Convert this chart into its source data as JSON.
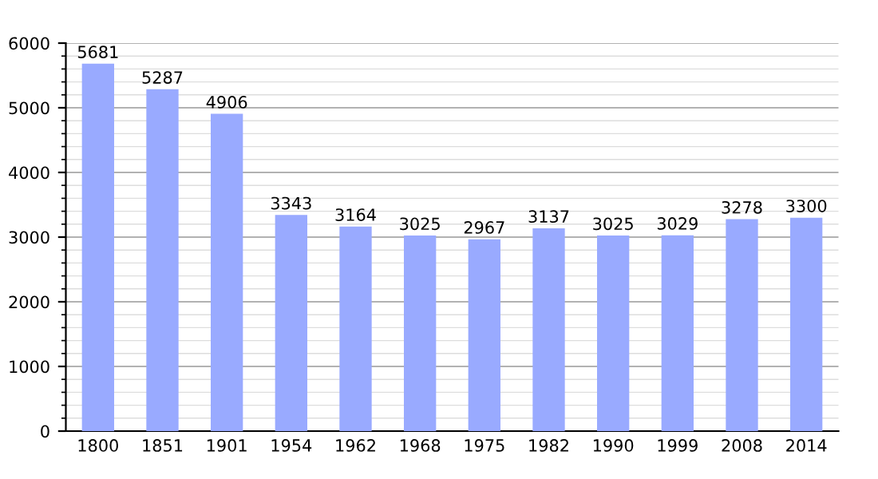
{
  "chart_data": {
    "type": "bar",
    "categories": [
      "1800",
      "1851",
      "1901",
      "1954",
      "1962",
      "1968",
      "1975",
      "1982",
      "1990",
      "1999",
      "2008",
      "2014"
    ],
    "values": [
      5681,
      5287,
      4906,
      3343,
      3164,
      3025,
      2967,
      3137,
      3025,
      3029,
      3278,
      3300
    ],
    "color": "#99aaff",
    "ylim": [
      0,
      6000
    ],
    "yticks": [
      0,
      1000,
      2000,
      3000,
      4000,
      5000,
      6000
    ],
    "grid": "y",
    "data_labels": true
  }
}
